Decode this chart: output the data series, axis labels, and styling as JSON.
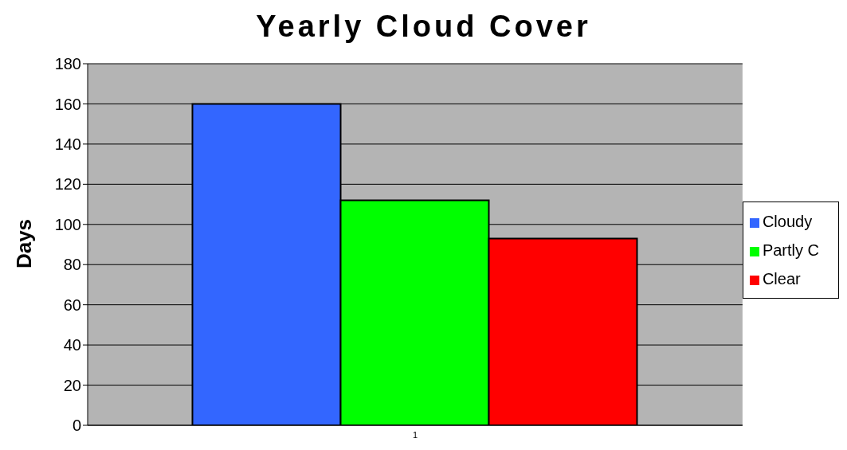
{
  "chart_data": {
    "type": "bar",
    "title": "Yearly Cloud Cover",
    "ylabel": "Days",
    "categories": [
      "1"
    ],
    "series": [
      {
        "name": "Cloudy",
        "color": "#3366ff",
        "values": [
          160
        ]
      },
      {
        "name": "Partly C",
        "color": "#00ff00",
        "values": [
          112
        ]
      },
      {
        "name": "Clear",
        "color": "#ff0000",
        "values": [
          93
        ]
      }
    ],
    "ylim": [
      0,
      180
    ],
    "yticks": [
      0,
      20,
      40,
      60,
      80,
      100,
      120,
      140,
      160,
      180
    ],
    "grid": "y",
    "legend": "right"
  }
}
